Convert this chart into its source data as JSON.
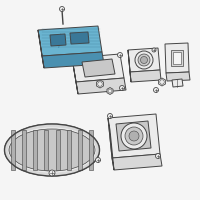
{
  "bg_color": "#f5f5f5",
  "highlight_color": "#6ab4d0",
  "highlight_dark": "#4a90b0",
  "highlight_side": "#3a7898",
  "line_color": "#444444",
  "fill_gray": "#d8d8d8",
  "fill_light": "#ebebeb",
  "fill_mid": "#c8c8c8",
  "fill_dark": "#b0b0b0",
  "white": "#f8f8f8",
  "fig_size": [
    2.0,
    2.0
  ],
  "dpi": 100
}
